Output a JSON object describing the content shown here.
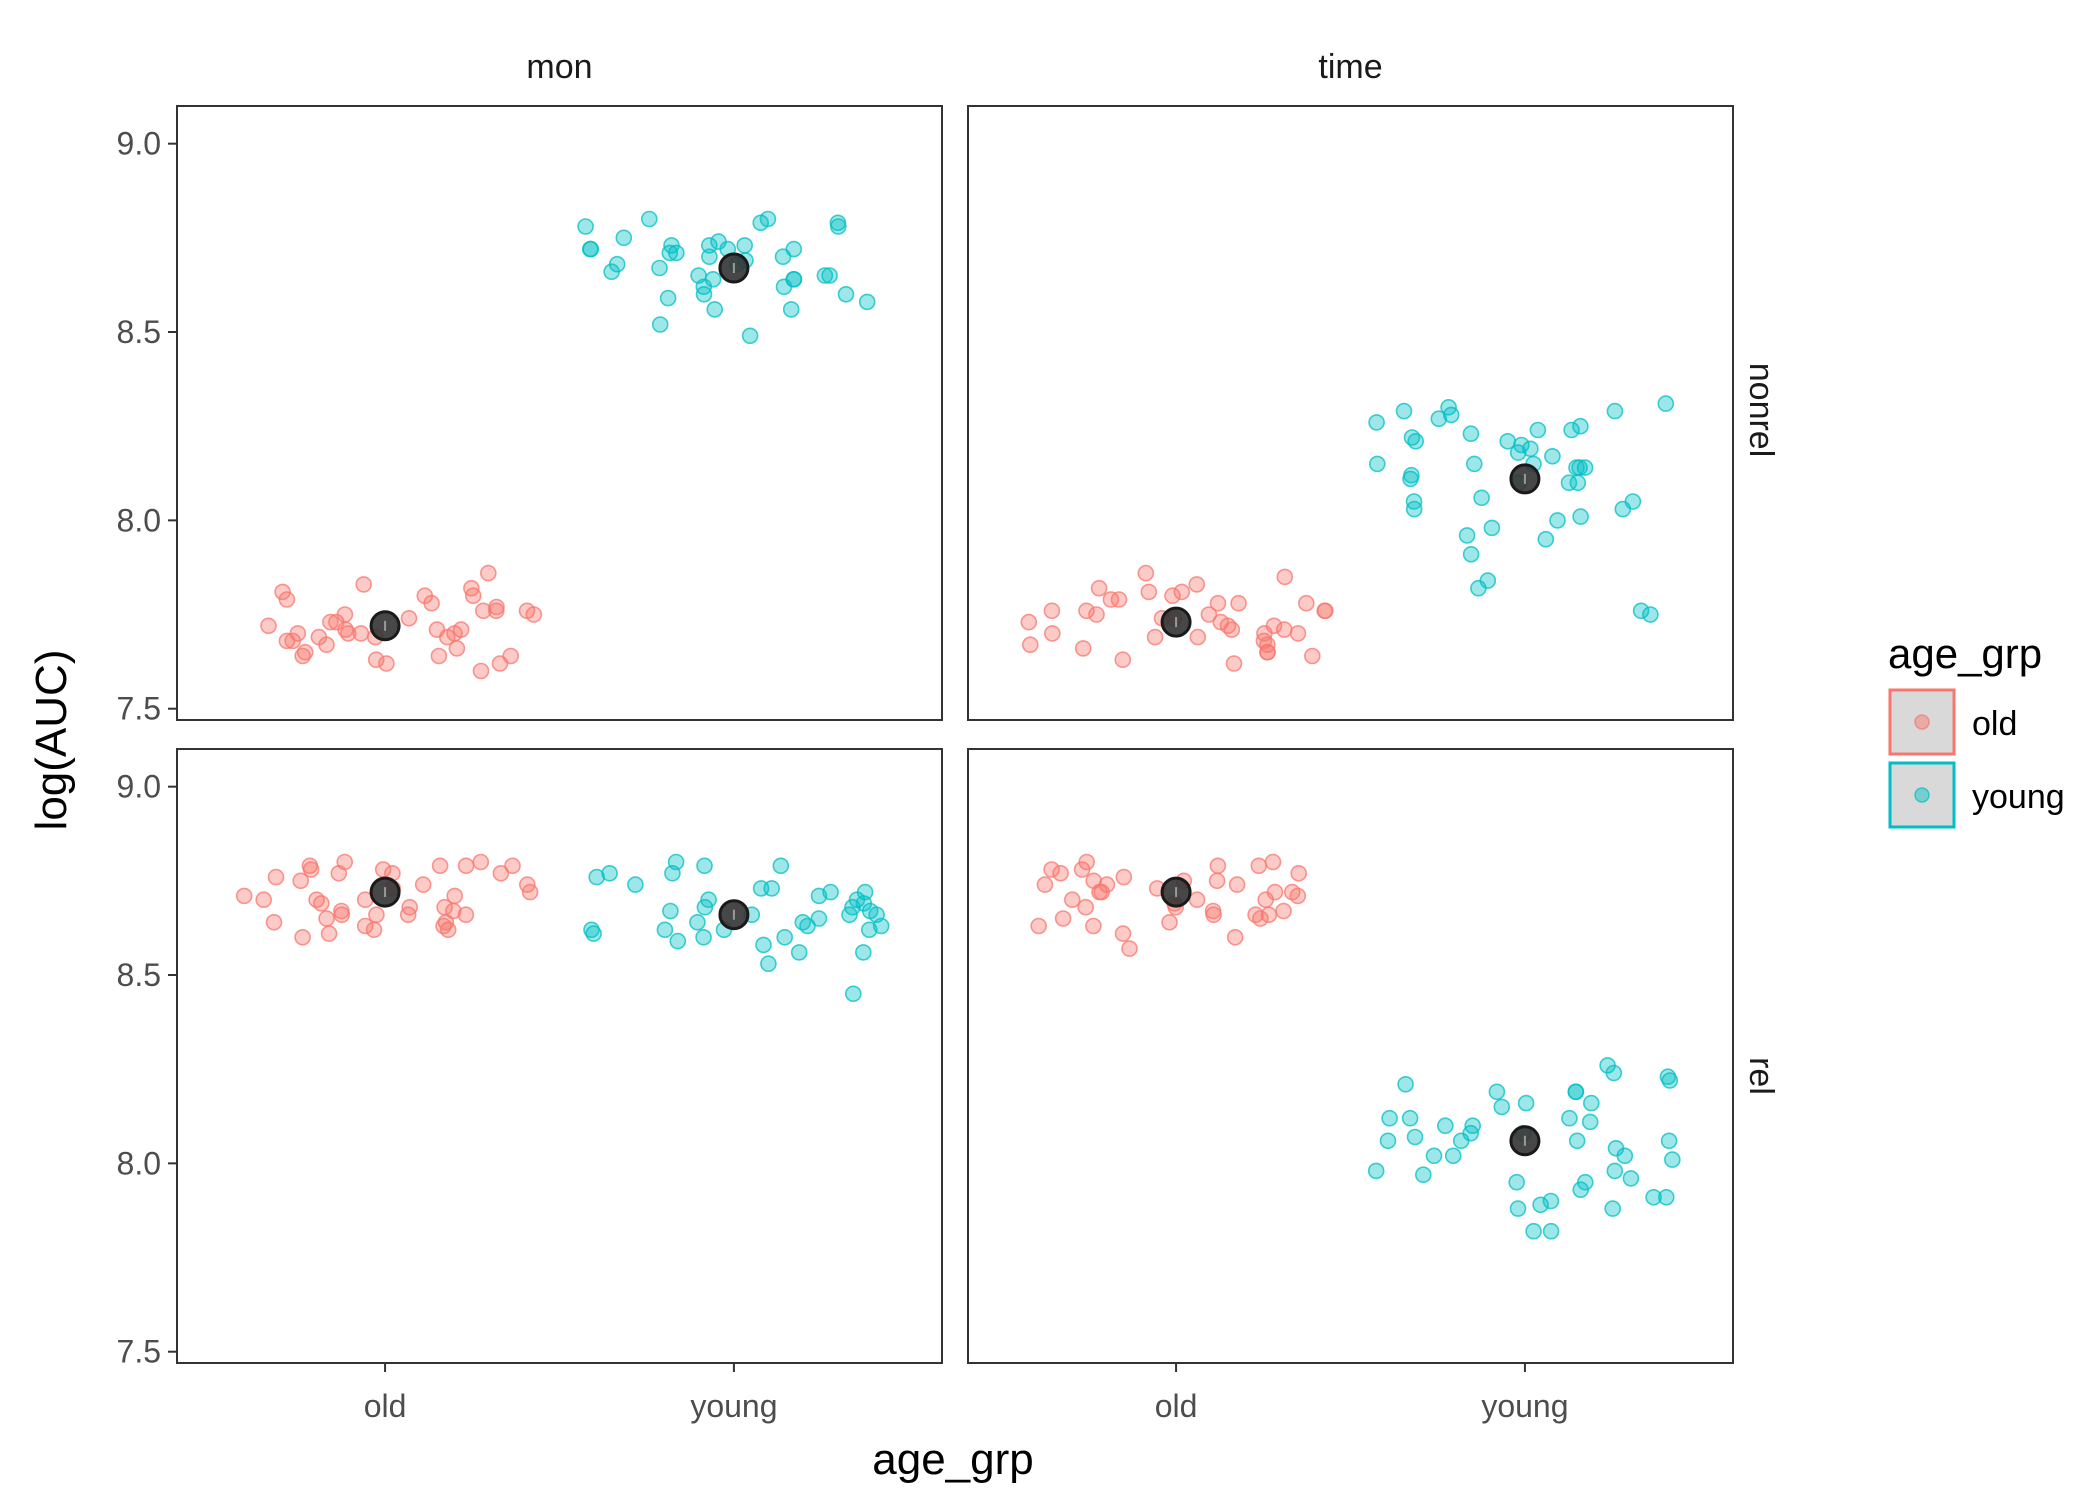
{
  "chart_data": {
    "type": "scatter",
    "xlabel": "age_grp",
    "ylabel": "log(AUC)",
    "ylim": [
      7.47,
      9.1
    ],
    "yticks": [
      "7.5",
      "8.0",
      "8.5",
      "9.0"
    ],
    "categories": [
      "old",
      "young"
    ],
    "col_facets": [
      "mon",
      "time"
    ],
    "row_facets": [
      "nonrel",
      "rel"
    ],
    "legend": {
      "title": "age_grp",
      "placement": "right",
      "entries": [
        {
          "label": "old",
          "color": "#F8766D"
        },
        {
          "label": "young",
          "color": "#00BFC4"
        }
      ]
    },
    "grid": false,
    "mean_marker_color": "#333333",
    "panels": [
      {
        "col": "mon",
        "row": "nonrel",
        "old": {
          "mean": 7.72,
          "points": [
            7.78,
            7.67,
            7.8,
            7.75,
            7.64,
            7.71,
            7.79,
            7.62,
            7.69,
            7.76,
            7.66,
            7.73,
            7.8,
            7.68,
            7.74,
            7.65,
            7.7,
            7.82,
            7.77,
            7.86,
            7.72,
            7.63,
            7.7,
            7.75,
            7.69,
            7.71,
            7.64,
            7.76,
            7.7,
            7.83,
            7.6,
            7.68,
            7.81,
            7.73,
            7.7,
            7.62,
            7.76,
            7.69,
            7.71,
            7.64
          ]
        },
        "young": {
          "mean": 8.67,
          "points": [
            8.56,
            8.6,
            8.65,
            8.71,
            8.73,
            8.79,
            8.64,
            8.68,
            8.79,
            8.66,
            8.56,
            8.62,
            8.72,
            8.52,
            8.65,
            8.6,
            8.7,
            8.58,
            8.64,
            8.72,
            8.67,
            8.75,
            8.62,
            8.78,
            8.71,
            8.59,
            8.73,
            8.8,
            8.65,
            8.72,
            8.69,
            8.78,
            8.8,
            8.64,
            8.72,
            8.49,
            8.74,
            8.68,
            8.7,
            8.73
          ]
        }
      },
      {
        "col": "time",
        "row": "nonrel",
        "old": {
          "mean": 7.73,
          "points": [
            7.8,
            7.64,
            7.76,
            7.81,
            7.7,
            7.75,
            7.67,
            7.78,
            7.73,
            7.86,
            7.65,
            7.71,
            7.79,
            7.68,
            7.76,
            7.74,
            7.66,
            7.83,
            7.72,
            7.85,
            7.69,
            7.62,
            7.76,
            7.78,
            7.7,
            7.82,
            7.74,
            7.67,
            7.79,
            7.71,
            7.75,
            7.65,
            7.81,
            7.69,
            7.73,
            7.63,
            7.78,
            7.72,
            7.7,
            7.76
          ]
        },
        "young": {
          "mean": 8.11,
          "points": [
            8.17,
            8.05,
            7.96,
            8.26,
            8.28,
            8.15,
            8.1,
            8.01,
            8.14,
            8.2,
            8.24,
            7.75,
            8.14,
            8.05,
            7.95,
            8.27,
            8.1,
            8.21,
            7.91,
            8.25,
            8.06,
            7.84,
            8.3,
            8.15,
            8.11,
            8.24,
            8.31,
            8.14,
            8.19,
            8.03,
            8.29,
            8.23,
            8.18,
            8.1,
            8.21,
            7.76,
            7.82,
            8.15,
            8.0,
            7.98,
            8.29,
            8.03,
            8.12,
            8.22
          ]
        }
      },
      {
        "col": "mon",
        "row": "rel",
        "old": {
          "mean": 8.72,
          "points": [
            8.79,
            8.62,
            8.64,
            8.67,
            8.75,
            8.66,
            8.79,
            8.61,
            8.7,
            8.77,
            8.66,
            8.72,
            8.6,
            8.79,
            8.68,
            8.74,
            8.78,
            8.71,
            8.65,
            8.8,
            8.69,
            8.77,
            8.67,
            8.73,
            8.63,
            8.79,
            8.7,
            8.76,
            8.66,
            8.71,
            8.64,
            8.78,
            8.62,
            8.8,
            8.68,
            8.74,
            8.66,
            8.77,
            8.7,
            8.63
          ]
        },
        "young": {
          "mean": 8.66,
          "points": [
            8.73,
            8.59,
            8.69,
            8.56,
            8.53,
            8.79,
            8.66,
            8.62,
            8.76,
            8.68,
            8.6,
            8.72,
            8.66,
            8.61,
            8.7,
            8.64,
            8.74,
            8.45,
            8.77,
            8.67,
            8.56,
            8.63,
            8.71,
            8.62,
            8.6,
            8.68,
            8.8,
            8.65,
            8.58,
            8.73,
            8.66,
            8.77,
            8.7,
            8.63,
            8.62,
            8.79,
            8.67,
            8.72,
            8.64,
            8.62
          ]
        }
      },
      {
        "col": "time",
        "row": "rel",
        "old": {
          "mean": 8.72,
          "points": [
            8.75,
            8.72,
            8.8,
            8.65,
            8.63,
            8.77,
            8.7,
            8.74,
            8.61,
            8.67,
            8.79,
            8.6,
            8.74,
            8.68,
            8.72,
            8.8,
            8.66,
            8.75,
            8.7,
            8.78,
            8.72,
            8.57,
            8.64,
            8.69,
            8.74,
            8.76,
            8.66,
            8.71,
            8.78,
            8.63,
            8.72,
            8.65,
            8.68,
            8.75,
            8.7,
            8.77,
            8.66,
            8.73,
            8.79,
            8.67
          ]
        },
        "young": {
          "mean": 8.06,
          "points": [
            8.08,
            8.12,
            7.82,
            7.89,
            8.26,
            8.15,
            8.06,
            8.01,
            8.24,
            7.98,
            8.1,
            8.02,
            8.19,
            7.91,
            8.19,
            7.95,
            7.91,
            8.06,
            7.88,
            7.93,
            7.82,
            8.16,
            7.95,
            8.11,
            8.06,
            8.02,
            8.12,
            7.97,
            7.96,
            8.08,
            8.1,
            7.98,
            8.21,
            8.06,
            8.04,
            7.9,
            8.23,
            7.88,
            8.16,
            8.02,
            8.22,
            8.12,
            8.19,
            8.07
          ]
        }
      }
    ]
  }
}
